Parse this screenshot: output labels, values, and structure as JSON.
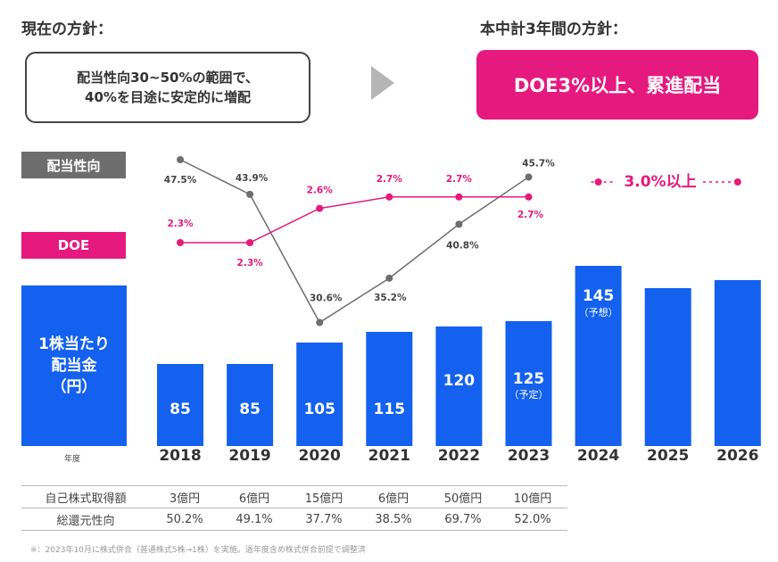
{
  "current_policy": {
    "header": "現在の方針：",
    "line1": "配当性向30~50%の範囲で、",
    "line2": "40%を目途に安定的に増配"
  },
  "new_policy": {
    "header": "本中計3年間の方針：",
    "text": "DOE3%以上、累進配当"
  },
  "legend": {
    "payout_label": "配当性向",
    "doe_label": "DOE",
    "dps_line1": "1株当たり",
    "dps_line2": "配当金",
    "dps_line3": "（円）",
    "year_label": "年度"
  },
  "colors": {
    "bar": "#1461f0",
    "doe": "#e5197e",
    "payout": "#6d6d6d"
  },
  "chart_data": {
    "type": "bar",
    "categories": [
      "2018",
      "2019",
      "2020",
      "2021",
      "2022",
      "2023",
      "2024",
      "2025",
      "2026"
    ],
    "series": [
      {
        "name": "1株当たり配当金（円）",
        "type": "bar",
        "values": [
          85,
          85,
          105,
          115,
          120,
          125,
          145,
          null,
          null
        ],
        "value_labels": [
          "85",
          "85",
          "105",
          "115",
          "120",
          "125",
          "145",
          "",
          ""
        ],
        "sublabels": [
          "",
          "",
          "",
          "",
          "",
          "（予定）",
          "（予想）",
          "",
          ""
        ]
      },
      {
        "name": "配当性向",
        "type": "line",
        "values": [
          47.5,
          43.9,
          30.6,
          35.2,
          40.8,
          45.7,
          null,
          null,
          null
        ],
        "labels": [
          "47.5%",
          "43.9%",
          "30.6%",
          "35.2%",
          "40.8%",
          "45.7%",
          "",
          "",
          ""
        ]
      },
      {
        "name": "DOE",
        "type": "line",
        "values": [
          2.3,
          2.3,
          2.6,
          2.7,
          2.7,
          2.7,
          3.0,
          null,
          3.0
        ],
        "labels": [
          "2.3%",
          "2.3%",
          "2.6%",
          "2.7%",
          "2.7%",
          "2.7%",
          "",
          "",
          ""
        ],
        "target_label": "3.0%以上"
      }
    ]
  },
  "table": {
    "rows": [
      {
        "label": "自己株式取得額",
        "values": [
          "3億円",
          "6億円",
          "15億円",
          "6億円",
          "50億円",
          "10億円"
        ]
      },
      {
        "label": "総還元性向",
        "values": [
          "50.2%",
          "49.1%",
          "37.7%",
          "38.5%",
          "69.7%",
          "52.0%"
        ]
      }
    ]
  },
  "footnote": "※：2023年10月に株式併合（普通株式5株→1株）を実施。過年度含め株式併合前提で調整済"
}
